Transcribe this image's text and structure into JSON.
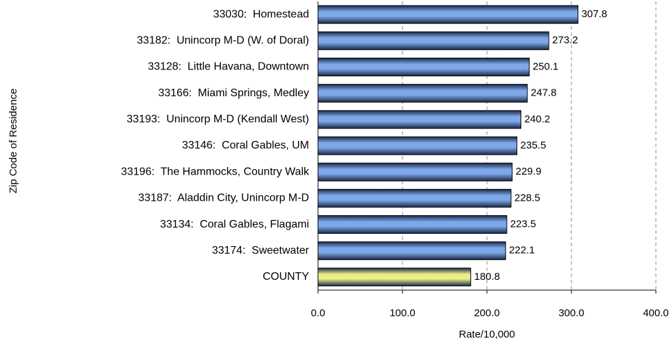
{
  "chart_data": {
    "type": "barh",
    "categories": [
      "33030:  Homestead",
      "33182:  Unincorp M-D (W. of Doral)",
      "33128:  Little Havana, Downtown",
      "33166:  Miami Springs, Medley",
      "33193:  Unincorp M-D (Kendall West)",
      "33146:  Coral Gables, UM",
      "33196:  The Hammocks, Country Walk",
      "33187:  Aladdin City, Unincorp M-D",
      "33134:  Coral Gables, Flagami",
      "33174:  Sweetwater",
      "COUNTY"
    ],
    "values": [
      307.8,
      273.2,
      250.1,
      247.8,
      240.2,
      235.5,
      229.9,
      228.5,
      223.5,
      222.1,
      180.8
    ],
    "colors": [
      "#7ea8e8",
      "#7ea8e8",
      "#7ea8e8",
      "#7ea8e8",
      "#7ea8e8",
      "#7ea8e8",
      "#7ea8e8",
      "#7ea8e8",
      "#7ea8e8",
      "#7ea8e8",
      "#eeee88"
    ],
    "xlim": [
      0,
      400
    ],
    "xticks": [
      {
        "value": 0,
        "label": "0.0"
      },
      {
        "value": 100,
        "label": "100.0"
      },
      {
        "value": 200,
        "label": "200.0"
      },
      {
        "value": 300,
        "label": "300.0"
      },
      {
        "value": 400,
        "label": "400.0"
      }
    ],
    "xlabel": "Rate/10,000",
    "ylabel": "Zip Code of Residence",
    "grid": true
  }
}
